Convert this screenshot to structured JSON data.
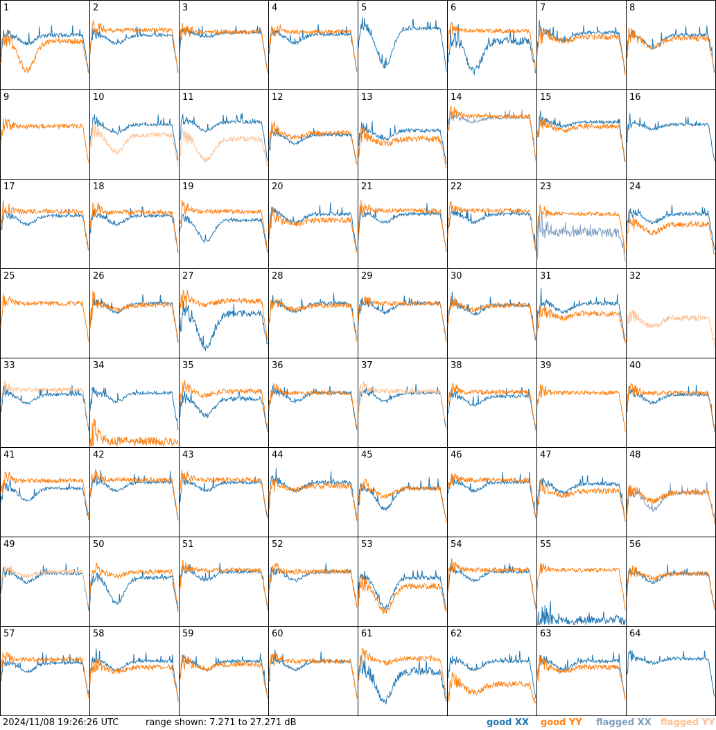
{
  "chart_data": {
    "type": "line",
    "layout": "8x8 small multiples",
    "timestamp": "2024/11/08 19:26:26 UTC",
    "range_text": "range shown: 7.271 to 27.271 dB",
    "ylim": [
      7.271,
      27.271
    ],
    "legend": {
      "good_xx": "good XX",
      "good_yy": "good YY",
      "flagged_xx": "flagged XX",
      "flagged_yy": "flagged YY"
    },
    "colors": {
      "good_xx": "#1f77b4",
      "good_yy": "#ff7f0e",
      "flagged_xx": "#7f9fbf",
      "flagged_yy": "#ffbf8f"
    },
    "tiles": [
      {
        "label": "1",
        "xx": {
          "status": "good",
          "level": 0.62,
          "dip": 0.1,
          "noise": 0.35
        },
        "yy": {
          "status": "good",
          "level": 0.55,
          "dip": 0.35,
          "noise": 0.6
        }
      },
      {
        "label": "2",
        "xx": {
          "status": "good",
          "level": 0.62,
          "dip": 0.1,
          "noise": 0.3
        },
        "yy": {
          "status": "good",
          "level": 0.68,
          "dip": 0.0,
          "noise": 0.45
        }
      },
      {
        "label": "3",
        "xx": {
          "status": "good",
          "level": 0.65,
          "dip": 0.05,
          "noise": 0.3
        },
        "yy": {
          "status": "good",
          "level": 0.66,
          "dip": 0.0,
          "noise": 0.45
        }
      },
      {
        "label": "4",
        "xx": {
          "status": "good",
          "level": 0.63,
          "dip": 0.1,
          "noise": 0.3
        },
        "yy": {
          "status": "good",
          "level": 0.66,
          "dip": 0.0,
          "noise": 0.45
        }
      },
      {
        "label": "5",
        "xx": {
          "status": "good",
          "level": 0.7,
          "dip": 0.45,
          "noise": 0.3
        },
        "yy": {
          "status": "good",
          "level": 0.0,
          "dip": 0.0,
          "noise": 0.0
        }
      },
      {
        "label": "6",
        "xx": {
          "status": "good",
          "level": 0.55,
          "dip": 0.35,
          "noise": 0.8
        },
        "yy": {
          "status": "good",
          "level": 0.67,
          "dip": 0.0,
          "noise": 0.4
        }
      },
      {
        "label": "7",
        "xx": {
          "status": "good",
          "level": 0.65,
          "dip": 0.1,
          "noise": 0.3
        },
        "yy": {
          "status": "good",
          "level": 0.6,
          "dip": 0.05,
          "noise": 0.55
        }
      },
      {
        "label": "8",
        "xx": {
          "status": "good",
          "level": 0.62,
          "dip": 0.15,
          "noise": 0.3
        },
        "yy": {
          "status": "good",
          "level": 0.58,
          "dip": 0.1,
          "noise": 0.55
        }
      },
      {
        "label": "9",
        "xx": {
          "status": "flagged",
          "level": 0.0,
          "dip": 0.0,
          "noise": 0.3
        },
        "yy": {
          "status": "good",
          "level": 0.6,
          "dip": 0.0,
          "noise": 0.45
        }
      },
      {
        "label": "10",
        "xx": {
          "status": "good",
          "level": 0.62,
          "dip": 0.1,
          "noise": 0.3
        },
        "yy": {
          "status": "flagged",
          "level": 0.5,
          "dip": 0.2,
          "noise": 0.5
        }
      },
      {
        "label": "11",
        "xx": {
          "status": "good",
          "level": 0.65,
          "dip": 0.1,
          "noise": 0.3
        },
        "yy": {
          "status": "flagged",
          "level": 0.45,
          "dip": 0.25,
          "noise": 0.5
        }
      },
      {
        "label": "12",
        "xx": {
          "status": "good",
          "level": 0.5,
          "dip": 0.1,
          "noise": 0.3
        },
        "yy": {
          "status": "good",
          "level": 0.52,
          "dip": 0.05,
          "noise": 0.5
        }
      },
      {
        "label": "13",
        "xx": {
          "status": "good",
          "level": 0.55,
          "dip": 0.1,
          "noise": 0.35
        },
        "yy": {
          "status": "good",
          "level": 0.45,
          "dip": 0.05,
          "noise": 0.6
        }
      },
      {
        "label": "14",
        "xx": {
          "status": "flagged",
          "level": 0.7,
          "dip": 0.05,
          "noise": 0.3
        },
        "yy": {
          "status": "good",
          "level": 0.72,
          "dip": 0.0,
          "noise": 0.4
        }
      },
      {
        "label": "15",
        "xx": {
          "status": "good",
          "level": 0.65,
          "dip": 0.05,
          "noise": 0.3
        },
        "yy": {
          "status": "good",
          "level": 0.6,
          "dip": 0.05,
          "noise": 0.5
        }
      },
      {
        "label": "16",
        "xx": {
          "status": "good",
          "level": 0.62,
          "dip": 0.05,
          "noise": 0.3
        },
        "yy": {
          "status": "flagged",
          "level": 0.0,
          "dip": 0.0,
          "noise": 0.0
        }
      },
      {
        "label": "17",
        "xx": {
          "status": "good",
          "level": 0.6,
          "dip": 0.1,
          "noise": 0.3
        },
        "yy": {
          "status": "good",
          "level": 0.65,
          "dip": 0.0,
          "noise": 0.45
        }
      },
      {
        "label": "18",
        "xx": {
          "status": "good",
          "level": 0.6,
          "dip": 0.1,
          "noise": 0.3
        },
        "yy": {
          "status": "good",
          "level": 0.64,
          "dip": 0.0,
          "noise": 0.45
        }
      },
      {
        "label": "19",
        "xx": {
          "status": "good",
          "level": 0.55,
          "dip": 0.25,
          "noise": 0.3
        },
        "yy": {
          "status": "good",
          "level": 0.65,
          "dip": 0.0,
          "noise": 0.45
        }
      },
      {
        "label": "20",
        "xx": {
          "status": "good",
          "level": 0.62,
          "dip": 0.1,
          "noise": 0.35
        },
        "yy": {
          "status": "good",
          "level": 0.55,
          "dip": 0.05,
          "noise": 0.55
        }
      },
      {
        "label": "21",
        "xx": {
          "status": "good",
          "level": 0.62,
          "dip": 0.1,
          "noise": 0.3
        },
        "yy": {
          "status": "good",
          "level": 0.66,
          "dip": 0.0,
          "noise": 0.45
        }
      },
      {
        "label": "22",
        "xx": {
          "status": "good",
          "level": 0.62,
          "dip": 0.1,
          "noise": 0.3
        },
        "yy": {
          "status": "good",
          "level": 0.66,
          "dip": 0.0,
          "noise": 0.45
        }
      },
      {
        "label": "23",
        "xx": {
          "status": "flagged",
          "level": 0.4,
          "dip": 0.0,
          "noise": 0.9
        },
        "yy": {
          "status": "good",
          "level": 0.62,
          "dip": 0.0,
          "noise": 0.4
        }
      },
      {
        "label": "24",
        "xx": {
          "status": "good",
          "level": 0.62,
          "dip": 0.1,
          "noise": 0.3
        },
        "yy": {
          "status": "good",
          "level": 0.5,
          "dip": 0.1,
          "noise": 0.55
        }
      },
      {
        "label": "25",
        "xx": {
          "status": "good",
          "level": 0.0,
          "dip": 0.0,
          "noise": 0.0
        },
        "yy": {
          "status": "good",
          "level": 0.62,
          "dip": 0.0,
          "noise": 0.45
        }
      },
      {
        "label": "26",
        "xx": {
          "status": "good",
          "level": 0.62,
          "dip": 0.1,
          "noise": 0.3
        },
        "yy": {
          "status": "good",
          "level": 0.6,
          "dip": 0.05,
          "noise": 0.5
        }
      },
      {
        "label": "27",
        "xx": {
          "status": "good",
          "level": 0.5,
          "dip": 0.4,
          "noise": 0.7
        },
        "yy": {
          "status": "good",
          "level": 0.65,
          "dip": 0.05,
          "noise": 0.55
        }
      },
      {
        "label": "28",
        "xx": {
          "status": "good",
          "level": 0.62,
          "dip": 0.1,
          "noise": 0.35
        },
        "yy": {
          "status": "good",
          "level": 0.6,
          "dip": 0.05,
          "noise": 0.5
        }
      },
      {
        "label": "29",
        "xx": {
          "status": "good",
          "level": 0.62,
          "dip": 0.1,
          "noise": 0.35
        },
        "yy": {
          "status": "good",
          "level": 0.62,
          "dip": 0.0,
          "noise": 0.5
        }
      },
      {
        "label": "30",
        "xx": {
          "status": "good",
          "level": 0.6,
          "dip": 0.1,
          "noise": 0.35
        },
        "yy": {
          "status": "good",
          "level": 0.6,
          "dip": 0.05,
          "noise": 0.5
        }
      },
      {
        "label": "31",
        "xx": {
          "status": "good",
          "level": 0.62,
          "dip": 0.1,
          "noise": 0.35
        },
        "yy": {
          "status": "good",
          "level": 0.5,
          "dip": 0.05,
          "noise": 0.55
        }
      },
      {
        "label": "32",
        "xx": {
          "status": "flagged",
          "level": 0.0,
          "dip": 0.0,
          "noise": 0.0
        },
        "yy": {
          "status": "flagged",
          "level": 0.45,
          "dip": 0.1,
          "noise": 0.55
        }
      },
      {
        "label": "33",
        "xx": {
          "status": "good",
          "level": 0.6,
          "dip": 0.1,
          "noise": 0.3
        },
        "yy": {
          "status": "flagged",
          "level": 0.66,
          "dip": 0.0,
          "noise": 0.45
        }
      },
      {
        "label": "34",
        "xx": {
          "status": "good",
          "level": 0.62,
          "dip": 0.1,
          "noise": 0.3
        },
        "yy": {
          "status": "good",
          "level": 0.05,
          "dip": 0.0,
          "noise": 0.9
        }
      },
      {
        "label": "35",
        "xx": {
          "status": "good",
          "level": 0.55,
          "dip": 0.2,
          "noise": 0.4
        },
        "yy": {
          "status": "good",
          "level": 0.64,
          "dip": 0.05,
          "noise": 0.5
        }
      },
      {
        "label": "36",
        "xx": {
          "status": "good",
          "level": 0.62,
          "dip": 0.1,
          "noise": 0.3
        },
        "yy": {
          "status": "good",
          "level": 0.62,
          "dip": 0.0,
          "noise": 0.45
        }
      },
      {
        "label": "37",
        "xx": {
          "status": "good",
          "level": 0.62,
          "dip": 0.1,
          "noise": 0.3
        },
        "yy": {
          "status": "flagged",
          "level": 0.64,
          "dip": 0.0,
          "noise": 0.45
        }
      },
      {
        "label": "38",
        "xx": {
          "status": "good",
          "level": 0.58,
          "dip": 0.1,
          "noise": 0.3
        },
        "yy": {
          "status": "good",
          "level": 0.63,
          "dip": 0.0,
          "noise": 0.45
        }
      },
      {
        "label": "39",
        "xx": {
          "status": "good",
          "level": 0.0,
          "dip": 0.0,
          "noise": 0.0
        },
        "yy": {
          "status": "good",
          "level": 0.62,
          "dip": 0.0,
          "noise": 0.4
        }
      },
      {
        "label": "40",
        "xx": {
          "status": "good",
          "level": 0.6,
          "dip": 0.1,
          "noise": 0.3
        },
        "yy": {
          "status": "good",
          "level": 0.62,
          "dip": 0.0,
          "noise": 0.45
        }
      },
      {
        "label": "41",
        "xx": {
          "status": "good",
          "level": 0.55,
          "dip": 0.15,
          "noise": 0.3
        },
        "yy": {
          "status": "good",
          "level": 0.64,
          "dip": 0.0,
          "noise": 0.45
        }
      },
      {
        "label": "42",
        "xx": {
          "status": "good",
          "level": 0.62,
          "dip": 0.1,
          "noise": 0.3
        },
        "yy": {
          "status": "good",
          "level": 0.65,
          "dip": 0.0,
          "noise": 0.45
        }
      },
      {
        "label": "43",
        "xx": {
          "status": "good",
          "level": 0.62,
          "dip": 0.1,
          "noise": 0.3
        },
        "yy": {
          "status": "good",
          "level": 0.65,
          "dip": 0.0,
          "noise": 0.45
        }
      },
      {
        "label": "44",
        "xx": {
          "status": "good",
          "level": 0.62,
          "dip": 0.1,
          "noise": 0.35
        },
        "yy": {
          "status": "good",
          "level": 0.58,
          "dip": 0.05,
          "noise": 0.55
        }
      },
      {
        "label": "45",
        "xx": {
          "status": "good",
          "level": 0.55,
          "dip": 0.25,
          "noise": 0.35
        },
        "yy": {
          "status": "good",
          "level": 0.55,
          "dip": 0.1,
          "noise": 0.5
        }
      },
      {
        "label": "46",
        "xx": {
          "status": "good",
          "level": 0.62,
          "dip": 0.1,
          "noise": 0.3
        },
        "yy": {
          "status": "good",
          "level": 0.65,
          "dip": 0.0,
          "noise": 0.45
        }
      },
      {
        "label": "47",
        "xx": {
          "status": "good",
          "level": 0.6,
          "dip": 0.1,
          "noise": 0.35
        },
        "yy": {
          "status": "good",
          "level": 0.52,
          "dip": 0.05,
          "noise": 0.55
        }
      },
      {
        "label": "48",
        "xx": {
          "status": "flagged",
          "level": 0.5,
          "dip": 0.2,
          "noise": 0.35
        },
        "yy": {
          "status": "good",
          "level": 0.5,
          "dip": 0.1,
          "noise": 0.55
        }
      },
      {
        "label": "49",
        "xx": {
          "status": "good",
          "level": 0.6,
          "dip": 0.1,
          "noise": 0.3
        },
        "yy": {
          "status": "flagged",
          "level": 0.62,
          "dip": 0.05,
          "noise": 0.45
        }
      },
      {
        "label": "50",
        "xx": {
          "status": "good",
          "level": 0.55,
          "dip": 0.3,
          "noise": 0.35
        },
        "yy": {
          "status": "good",
          "level": 0.62,
          "dip": 0.05,
          "noise": 0.45
        }
      },
      {
        "label": "51",
        "xx": {
          "status": "good",
          "level": 0.62,
          "dip": 0.1,
          "noise": 0.3
        },
        "yy": {
          "status": "good",
          "level": 0.64,
          "dip": 0.0,
          "noise": 0.45
        }
      },
      {
        "label": "52",
        "xx": {
          "status": "good",
          "level": 0.62,
          "dip": 0.1,
          "noise": 0.3
        },
        "yy": {
          "status": "good",
          "level": 0.62,
          "dip": 0.0,
          "noise": 0.5
        }
      },
      {
        "label": "53",
        "xx": {
          "status": "good",
          "level": 0.55,
          "dip": 0.35,
          "noise": 0.4
        },
        "yy": {
          "status": "good",
          "level": 0.45,
          "dip": 0.3,
          "noise": 0.6
        }
      },
      {
        "label": "54",
        "xx": {
          "status": "good",
          "level": 0.62,
          "dip": 0.1,
          "noise": 0.3
        },
        "yy": {
          "status": "good",
          "level": 0.64,
          "dip": 0.0,
          "noise": 0.45
        }
      },
      {
        "label": "55",
        "xx": {
          "status": "good",
          "level": 0.05,
          "dip": 0.0,
          "noise": 0.9
        },
        "yy": {
          "status": "good",
          "level": 0.64,
          "dip": 0.0,
          "noise": 0.4
        }
      },
      {
        "label": "56",
        "xx": {
          "status": "good",
          "level": 0.6,
          "dip": 0.1,
          "noise": 0.35
        },
        "yy": {
          "status": "good",
          "level": 0.6,
          "dip": 0.05,
          "noise": 0.5
        }
      },
      {
        "label": "57",
        "xx": {
          "status": "good",
          "level": 0.6,
          "dip": 0.1,
          "noise": 0.3
        },
        "yy": {
          "status": "good",
          "level": 0.64,
          "dip": 0.0,
          "noise": 0.45
        }
      },
      {
        "label": "58",
        "xx": {
          "status": "good",
          "level": 0.62,
          "dip": 0.1,
          "noise": 0.3
        },
        "yy": {
          "status": "good",
          "level": 0.55,
          "dip": 0.05,
          "noise": 0.55
        }
      },
      {
        "label": "59",
        "xx": {
          "status": "good",
          "level": 0.62,
          "dip": 0.1,
          "noise": 0.3
        },
        "yy": {
          "status": "good",
          "level": 0.58,
          "dip": 0.05,
          "noise": 0.5
        }
      },
      {
        "label": "60",
        "xx": {
          "status": "good",
          "level": 0.62,
          "dip": 0.1,
          "noise": 0.3
        },
        "yy": {
          "status": "good",
          "level": 0.62,
          "dip": 0.0,
          "noise": 0.45
        }
      },
      {
        "label": "61",
        "xx": {
          "status": "good",
          "level": 0.5,
          "dip": 0.35,
          "noise": 0.8
        },
        "yy": {
          "status": "good",
          "level": 0.65,
          "dip": 0.05,
          "noise": 0.5
        }
      },
      {
        "label": "62",
        "xx": {
          "status": "good",
          "level": 0.62,
          "dip": 0.1,
          "noise": 0.3
        },
        "yy": {
          "status": "good",
          "level": 0.35,
          "dip": 0.1,
          "noise": 0.6
        }
      },
      {
        "label": "63",
        "xx": {
          "status": "good",
          "level": 0.62,
          "dip": 0.1,
          "noise": 0.3
        },
        "yy": {
          "status": "good",
          "level": 0.55,
          "dip": 0.05,
          "noise": 0.5
        }
      },
      {
        "label": "64",
        "xx": {
          "status": "good",
          "level": 0.65,
          "dip": 0.05,
          "noise": 0.3
        },
        "yy": {
          "status": "good",
          "level": 0.0,
          "dip": 0.0,
          "noise": 0.0
        }
      }
    ]
  }
}
